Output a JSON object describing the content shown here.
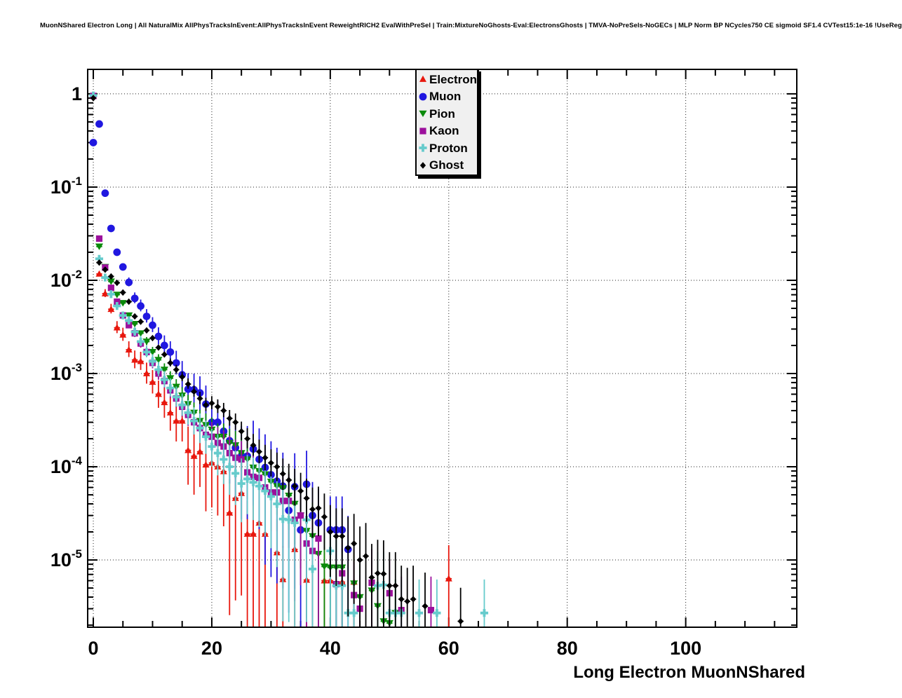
{
  "canvas": {
    "background": "#ffffff"
  },
  "chart_data": {
    "type": "scatter",
    "title": "MuonNShared Electron Long | All NaturalMix AllPhysTracksInEvent:AllPhysTracksInEvent ReweightRICH2 EvalWithPreSel | Train:MixtureNoGhosts-Eval:ElectronsGhosts | TMVA-NoPreSels-NoGECs | MLP Norm BP NCycles750 CE sigmoid SF1.4 CVTest15:1e-16 !UseReg",
    "xlabel": "Long Electron MuonNShared",
    "ylabel": "",
    "x_scale": "linear",
    "y_scale": "log",
    "xlim": [
      -0.95,
      118.75
    ],
    "ylim": [
      1.9e-06,
      1.83
    ],
    "grid": {
      "show": true,
      "color": "#222222",
      "style": "dotted"
    },
    "frame_color": "#000000",
    "xticks": [
      {
        "value": 0,
        "label": "0"
      },
      {
        "value": 20,
        "label": "20"
      },
      {
        "value": 40,
        "label": "40"
      },
      {
        "value": 60,
        "label": "60"
      },
      {
        "value": 80,
        "label": "80"
      },
      {
        "value": 100,
        "label": "100"
      }
    ],
    "x_minor_step": 5,
    "yticks": [
      {
        "value": 1,
        "base": "1",
        "exp": ""
      },
      {
        "value": 0.1,
        "base": "10",
        "exp": "-1"
      },
      {
        "value": 0.01,
        "base": "10",
        "exp": "-2"
      },
      {
        "value": 0.001,
        "base": "10",
        "exp": "-3"
      },
      {
        "value": 0.0001,
        "base": "10",
        "exp": "-4"
      },
      {
        "value": 1e-05,
        "base": "10",
        "exp": "-5"
      }
    ],
    "legend": {
      "position": "top-center",
      "background": "#f0f0f0",
      "border": "#000000"
    },
    "series": [
      {
        "name": "Electron",
        "color": "#e8170d",
        "marker": "triangle-up",
        "err_coeff": 0.007,
        "points": [
          [
            0,
            0.95
          ],
          [
            1,
            0.0117
          ],
          [
            2,
            0.0072
          ],
          [
            3,
            0.0049
          ],
          [
            4,
            0.0031
          ],
          [
            5,
            0.0026
          ],
          [
            6,
            0.0018
          ],
          [
            7,
            0.0014
          ],
          [
            8,
            0.00135
          ],
          [
            9,
            0.001
          ],
          [
            10,
            0.00081
          ],
          [
            11,
            0.0006
          ],
          [
            12,
            0.00049
          ],
          [
            13,
            0.00038
          ],
          [
            14,
            0.00031
          ],
          [
            15,
            0.00031
          ],
          [
            16,
            0.00015
          ],
          [
            17,
            0.00013
          ],
          [
            18,
            0.000145
          ],
          [
            19,
            0.000105
          ],
          [
            20,
            0.00011
          ],
          [
            21,
            0.0001
          ],
          [
            22,
            8.9e-05
          ],
          [
            23,
            3.2e-05
          ],
          [
            24,
            4.6e-05
          ],
          [
            25,
            5.2e-05
          ],
          [
            26,
            1.9e-05
          ],
          [
            27,
            1.9e-05
          ],
          [
            28,
            2.5e-05
          ],
          [
            29,
            1.9e-05
          ],
          [
            31,
            1.2e-05
          ],
          [
            32,
            6.2e-06
          ],
          [
            34,
            1.3e-05
          ],
          [
            36,
            6.1e-06
          ],
          [
            39,
            6e-06
          ],
          [
            40,
            6e-06
          ],
          [
            42,
            5.8e-06
          ],
          [
            44,
            5.8e-06
          ],
          [
            60,
            6.3e-06
          ]
        ]
      },
      {
        "name": "Muon",
        "color": "#2017e0",
        "marker": "circle",
        "err_coeff": 0.009,
        "points": [
          [
            0,
            0.3
          ],
          [
            1,
            0.475
          ],
          [
            2,
            0.086
          ],
          [
            3,
            0.036
          ],
          [
            4,
            0.02
          ],
          [
            5,
            0.0139
          ],
          [
            6,
            0.0095
          ],
          [
            7,
            0.0064
          ],
          [
            8,
            0.0053
          ],
          [
            9,
            0.0041
          ],
          [
            10,
            0.0033
          ],
          [
            11,
            0.0025
          ],
          [
            12,
            0.002
          ],
          [
            13,
            0.0017
          ],
          [
            14,
            0.0013
          ],
          [
            15,
            0.00097
          ],
          [
            16,
            0.00068
          ],
          [
            17,
            0.00067
          ],
          [
            18,
            0.00062
          ],
          [
            19,
            0.00047
          ],
          [
            20,
            0.0003
          ],
          [
            21,
            0.0003
          ],
          [
            22,
            0.00024
          ],
          [
            23,
            0.00019
          ],
          [
            24,
            0.00016
          ],
          [
            25,
            0.00013
          ],
          [
            26,
            0.00013
          ],
          [
            27,
            0.000155
          ],
          [
            28,
            0.00012
          ],
          [
            29,
            9.8e-05
          ],
          [
            30,
            8.2e-05
          ],
          [
            31,
            7e-05
          ],
          [
            32,
            6.2e-05
          ],
          [
            33,
            3.4e-05
          ],
          [
            34,
            6.1e-05
          ],
          [
            35,
            2.1e-05
          ],
          [
            36,
            6.5e-05
          ],
          [
            37,
            3e-05
          ],
          [
            38,
            2.5e-05
          ],
          [
            40,
            2.1e-05
          ],
          [
            41,
            2.1e-05
          ],
          [
            42,
            2.1e-05
          ],
          [
            43,
            1.3e-05
          ]
        ]
      },
      {
        "name": "Pion",
        "color": "#0a8a0a",
        "marker": "triangle-down",
        "err_coeff": 0.004,
        "points": [
          [
            0,
            0.95
          ],
          [
            1,
            0.023
          ],
          [
            2,
            0.0139
          ],
          [
            3,
            0.0097
          ],
          [
            4,
            0.007
          ],
          [
            5,
            0.0057
          ],
          [
            6,
            0.0042
          ],
          [
            7,
            0.0034
          ],
          [
            8,
            0.0027
          ],
          [
            9,
            0.0022
          ],
          [
            10,
            0.0017
          ],
          [
            11,
            0.0014
          ],
          [
            12,
            0.0011
          ],
          [
            13,
            0.00089
          ],
          [
            14,
            0.00072
          ],
          [
            15,
            0.00058
          ],
          [
            16,
            0.00047
          ],
          [
            17,
            0.00038
          ],
          [
            18,
            0.00031
          ],
          [
            19,
            0.00028
          ],
          [
            20,
            0.00025
          ],
          [
            21,
            0.00021
          ],
          [
            22,
            0.00021
          ],
          [
            23,
            0.00018
          ],
          [
            24,
            0.00017
          ],
          [
            25,
            0.00014
          ],
          [
            26,
            0.00012
          ],
          [
            27,
            9.8e-05
          ],
          [
            28,
            9e-05
          ],
          [
            29,
            8.3e-05
          ],
          [
            30,
            6.9e-05
          ],
          [
            31,
            6.2e-05
          ],
          [
            32,
            5.9e-05
          ],
          [
            33,
            4.9e-05
          ],
          [
            34,
            4e-05
          ],
          [
            35,
            3e-05
          ],
          [
            36,
            2.05e-05
          ],
          [
            37,
            1.8e-05
          ],
          [
            38,
            1.16e-05
          ],
          [
            39,
            8.5e-06
          ],
          [
            40,
            8.3e-06
          ],
          [
            41,
            8.3e-06
          ],
          [
            42,
            8.3e-06
          ],
          [
            44,
            5.6e-06
          ],
          [
            45,
            4e-06
          ],
          [
            47,
            4.7e-06
          ],
          [
            48,
            3.2e-06
          ],
          [
            49,
            2.2e-06
          ],
          [
            50,
            2.1e-06
          ],
          [
            51,
            2.7e-06
          ]
        ]
      },
      {
        "name": "Kaon",
        "color": "#9c109c",
        "marker": "square",
        "err_coeff": 0.0045,
        "points": [
          [
            0,
            0.95
          ],
          [
            1,
            0.028
          ],
          [
            2,
            0.0137
          ],
          [
            3,
            0.0083
          ],
          [
            4,
            0.0059
          ],
          [
            5,
            0.0042
          ],
          [
            6,
            0.0033
          ],
          [
            7,
            0.0027
          ],
          [
            8,
            0.0021
          ],
          [
            9,
            0.0017
          ],
          [
            10,
            0.0013
          ],
          [
            11,
            0.001
          ],
          [
            12,
            0.00083
          ],
          [
            13,
            0.00066
          ],
          [
            14,
            0.00054
          ],
          [
            15,
            0.00044
          ],
          [
            16,
            0.00036
          ],
          [
            17,
            0.0003
          ],
          [
            18,
            0.00026
          ],
          [
            19,
            0.00022
          ],
          [
            20,
            0.00021
          ],
          [
            21,
            0.00018
          ],
          [
            22,
            0.000165
          ],
          [
            23,
            0.00014
          ],
          [
            24,
            0.000125
          ],
          [
            25,
            0.00012
          ],
          [
            26,
            8.7e-05
          ],
          [
            27,
            7.8e-05
          ],
          [
            28,
            7.6e-05
          ],
          [
            29,
            6e-05
          ],
          [
            30,
            5.3e-05
          ],
          [
            31,
            5.3e-05
          ],
          [
            32,
            4.3e-05
          ],
          [
            33,
            4.3e-05
          ],
          [
            34,
            2.7e-05
          ],
          [
            35,
            3e-05
          ],
          [
            36,
            1.5e-05
          ],
          [
            37,
            1.25e-05
          ],
          [
            38,
            1.7e-05
          ],
          [
            41,
            5.5e-06
          ],
          [
            42,
            7.2e-06
          ],
          [
            44,
            4.2e-06
          ],
          [
            45,
            3e-06
          ],
          [
            47,
            5.7e-06
          ],
          [
            50,
            4.4e-06
          ],
          [
            52,
            2.9e-06
          ],
          [
            57,
            2.9e-06
          ]
        ]
      },
      {
        "name": "Proton",
        "color": "#66cbcc",
        "marker": "cross",
        "err_coeff": 0.005,
        "points": [
          [
            0,
            0.96
          ],
          [
            1,
            0.017
          ],
          [
            2,
            0.0107
          ],
          [
            3,
            0.0071
          ],
          [
            4,
            0.0053
          ],
          [
            5,
            0.0042
          ],
          [
            6,
            0.0037
          ],
          [
            7,
            0.0028
          ],
          [
            8,
            0.0022
          ],
          [
            9,
            0.0017
          ],
          [
            10,
            0.00135
          ],
          [
            11,
            0.0011
          ],
          [
            12,
            0.00086
          ],
          [
            13,
            0.0007
          ],
          [
            14,
            0.00056
          ],
          [
            15,
            0.00046
          ],
          [
            16,
            0.00038
          ],
          [
            17,
            0.00031
          ],
          [
            18,
            0.00026
          ],
          [
            19,
            0.00021
          ],
          [
            20,
            0.000165
          ],
          [
            21,
            0.00014
          ],
          [
            22,
            0.00012
          ],
          [
            23,
            0.0001
          ],
          [
            24,
            8.5e-05
          ],
          [
            25,
            6.6e-05
          ],
          [
            26,
            7.4e-05
          ],
          [
            27,
            6.8e-05
          ],
          [
            28,
            6.2e-05
          ],
          [
            29,
            5.5e-05
          ],
          [
            30,
            4.8e-05
          ],
          [
            31,
            4e-05
          ],
          [
            32,
            2.75e-05
          ],
          [
            33,
            2.7e-05
          ],
          [
            34,
            2.5e-05
          ],
          [
            36,
            2.7e-05
          ],
          [
            37,
            8e-06
          ],
          [
            40,
            1.25e-05
          ],
          [
            41,
            5.3e-06
          ],
          [
            42,
            5.3e-06
          ],
          [
            43,
            2.7e-06
          ],
          [
            44,
            2.7e-06
          ],
          [
            48,
            5.3e-06
          ],
          [
            49,
            5.4e-06
          ],
          [
            50,
            2.7e-06
          ],
          [
            51,
            2.7e-06
          ],
          [
            52,
            2.7e-06
          ],
          [
            55,
            2.7e-06
          ],
          [
            58,
            2.7e-06
          ],
          [
            66,
            2.7e-06
          ]
        ]
      },
      {
        "name": "Ghost",
        "color": "#000000",
        "marker": "diamond",
        "err_coeff": 0.003,
        "points": [
          [
            0,
            0.9
          ],
          [
            1,
            0.0155
          ],
          [
            2,
            0.013
          ],
          [
            3,
            0.011
          ],
          [
            4,
            0.0094
          ],
          [
            5,
            0.0074
          ],
          [
            6,
            0.0059
          ],
          [
            7,
            0.0041
          ],
          [
            8,
            0.0036
          ],
          [
            9,
            0.0029
          ],
          [
            10,
            0.0024
          ],
          [
            11,
            0.0019
          ],
          [
            12,
            0.0016
          ],
          [
            13,
            0.0013
          ],
          [
            14,
            0.0011
          ],
          [
            15,
            0.00092
          ],
          [
            16,
            0.00077
          ],
          [
            17,
            0.00064
          ],
          [
            18,
            0.00054
          ],
          [
            19,
            0.00046
          ],
          [
            20,
            0.00048
          ],
          [
            21,
            0.00044
          ],
          [
            22,
            0.0004
          ],
          [
            23,
            0.00033
          ],
          [
            24,
            0.0003
          ],
          [
            25,
            0.00024
          ],
          [
            26,
            0.0002
          ],
          [
            27,
            0.00017
          ],
          [
            28,
            0.000145
          ],
          [
            29,
            0.000125
          ],
          [
            30,
            0.00011
          ],
          [
            31,
            0.0001
          ],
          [
            32,
            8.4e-05
          ],
          [
            33,
            7.2e-05
          ],
          [
            34,
            6.2e-05
          ],
          [
            35,
            5.5e-05
          ],
          [
            36,
            4.6e-05
          ],
          [
            37,
            3.5e-05
          ],
          [
            38,
            3.6e-05
          ],
          [
            39,
            2.9e-05
          ],
          [
            40,
            2e-05
          ],
          [
            41,
            1.8e-05
          ],
          [
            42,
            1.8e-05
          ],
          [
            43,
            1.35e-05
          ],
          [
            44,
            1.5e-05
          ],
          [
            45,
            1e-05
          ],
          [
            46,
            1.1e-05
          ],
          [
            47,
            6.5e-06
          ],
          [
            48,
            7.2e-06
          ],
          [
            49,
            7.1e-06
          ],
          [
            50,
            5.3e-06
          ],
          [
            51,
            5.3e-06
          ],
          [
            52,
            3.8e-06
          ],
          [
            53,
            3.6e-06
          ],
          [
            54,
            3.8e-06
          ],
          [
            56,
            3.2e-06
          ],
          [
            62,
            2.2e-06
          ]
        ]
      }
    ]
  }
}
